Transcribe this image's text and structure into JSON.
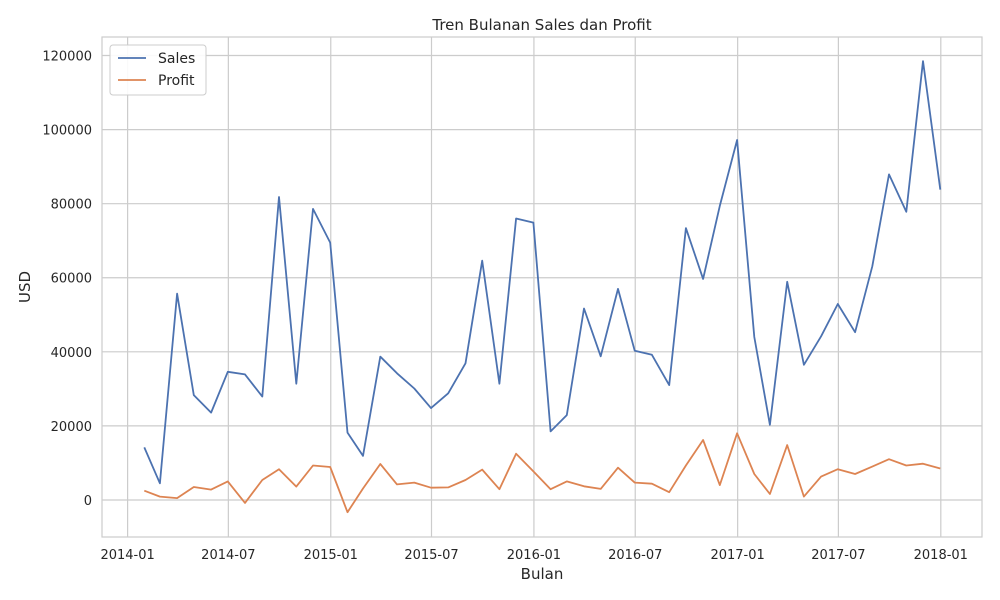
{
  "chart_data": {
    "type": "line",
    "title": "Tren Bulanan Sales dan Profit",
    "xlabel": "Bulan",
    "ylabel": "USD",
    "x": [
      "2014-01-31",
      "2014-02-28",
      "2014-03-31",
      "2014-04-30",
      "2014-05-31",
      "2014-06-30",
      "2014-07-31",
      "2014-08-31",
      "2014-09-30",
      "2014-10-31",
      "2014-11-30",
      "2014-12-31",
      "2015-01-31",
      "2015-02-28",
      "2015-03-31",
      "2015-04-30",
      "2015-05-31",
      "2015-06-30",
      "2015-07-31",
      "2015-08-31",
      "2015-09-30",
      "2015-10-31",
      "2015-11-30",
      "2015-12-31",
      "2016-01-31",
      "2016-02-29",
      "2016-03-31",
      "2016-04-30",
      "2016-05-31",
      "2016-06-30",
      "2016-07-31",
      "2016-08-31",
      "2016-09-30",
      "2016-10-31",
      "2016-11-30",
      "2016-12-31",
      "2017-01-31",
      "2017-02-28",
      "2017-03-31",
      "2017-04-30",
      "2017-05-31",
      "2017-06-30",
      "2017-07-31",
      "2017-08-31",
      "2017-09-30",
      "2017-10-31",
      "2017-11-30",
      "2017-12-31"
    ],
    "series": [
      {
        "name": "Sales",
        "color": "#4c72b0",
        "values": [
          14200,
          4500,
          55700,
          28300,
          23600,
          34600,
          33900,
          27900,
          81800,
          31400,
          78600,
          69500,
          18200,
          11900,
          38700,
          34200,
          30100,
          24800,
          28800,
          36900,
          64600,
          31400,
          76000,
          74900,
          18500,
          22900,
          51700,
          38800,
          57000,
          40300,
          39200,
          31000,
          73400,
          59700,
          79400,
          97200,
          44000,
          20300,
          58900,
          36500,
          44200,
          52900,
          45300,
          63100,
          87900,
          77800,
          118500,
          83800
        ]
      },
      {
        "name": "Profit",
        "color": "#dd8452",
        "values": [
          2500,
          900,
          500,
          3500,
          2800,
          5000,
          -800,
          5400,
          8300,
          3600,
          9300,
          8900,
          -3300,
          3100,
          9700,
          4200,
          4700,
          3300,
          3400,
          5400,
          8200,
          2900,
          12500,
          7700,
          2900,
          5000,
          3700,
          3000,
          8700,
          4700,
          4400,
          2100,
          9300,
          16200,
          4000,
          18000,
          7000,
          1600,
          14800,
          900,
          6300,
          8300,
          7000,
          9000,
          11000,
          9300,
          9800,
          8500
        ]
      }
    ],
    "xticks": [
      "2014-01",
      "2014-07",
      "2015-01",
      "2015-07",
      "2016-01",
      "2016-07",
      "2017-01",
      "2017-07",
      "2018-01"
    ],
    "yticks": [
      0,
      20000,
      40000,
      60000,
      80000,
      100000,
      120000
    ],
    "ylim": [
      -10000,
      125000
    ],
    "xlim": [
      "2013-11-16",
      "2018-03-16"
    ],
    "grid": true,
    "legend_position": "upper-left"
  }
}
